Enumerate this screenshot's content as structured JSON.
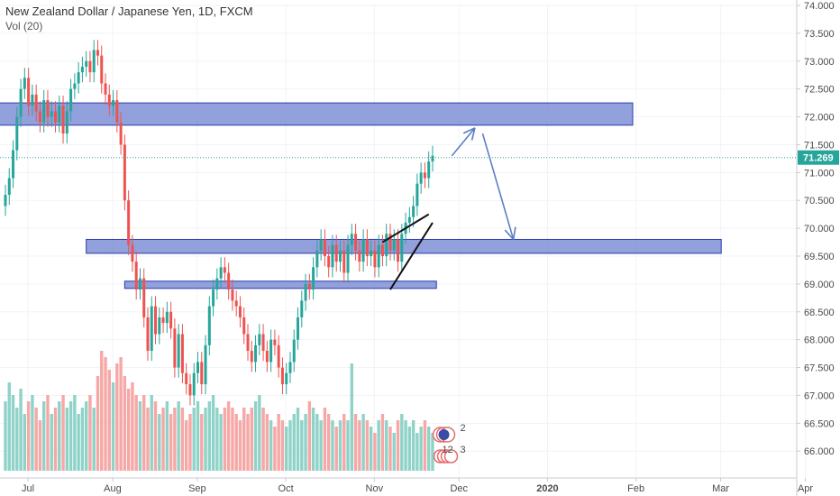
{
  "header": {
    "symbol_title": "New Zealand Dollar / Japanese Yen, 1D, FXCM",
    "volume_label": "Vol (20)"
  },
  "colors": {
    "up": "#26a69a",
    "down": "#ef5350",
    "vol_up": "#8fd3c8",
    "vol_down": "#f5a8a6",
    "zone_fill": "#7f8fd6",
    "zone_border": "#2b3cae",
    "arrow": "#5a7fc4",
    "last_price": "#26a69a"
  },
  "chart_data": {
    "type": "candlestick",
    "y_ticks": [
      "74.000",
      "73.500",
      "73.000",
      "72.500",
      "72.000",
      "71.500",
      "71.000",
      "70.500",
      "70.000",
      "69.500",
      "69.000",
      "68.500",
      "68.000",
      "67.500",
      "67.000",
      "66.500",
      "66.000"
    ],
    "ylim": [
      65.55,
      74.0
    ],
    "last_price": "71.269",
    "last_price_value": 71.269,
    "x_ticks": [
      "Jul",
      "Aug",
      "Sep",
      "Oct",
      "Nov",
      "Dec",
      "2020",
      "Feb",
      "Mar",
      "Apr"
    ],
    "x_tick_index": [
      0,
      22,
      44,
      67,
      90,
      112,
      135,
      158,
      180,
      202
    ],
    "close": [
      70.6,
      70.9,
      71.4,
      72.0,
      72.5,
      72.7,
      72.2,
      72.4,
      72.1,
      71.9,
      72.3,
      72.0,
      72.1,
      71.9,
      72.2,
      71.7,
      72.1,
      72.5,
      72.6,
      72.8,
      72.9,
      73.0,
      72.8,
      73.2,
      73.1,
      72.6,
      72.4,
      72.2,
      72.3,
      71.9,
      71.5,
      70.5,
      69.7,
      69.4,
      68.9,
      69.1,
      68.4,
      67.8,
      68.6,
      68.1,
      68.4,
      68.3,
      68.5,
      68.2,
      67.5,
      68.1,
      67.4,
      67.2,
      67.0,
      67.4,
      67.6,
      67.2,
      67.9,
      68.6,
      68.9,
      69.1,
      69.3,
      69.2,
      68.9,
      68.7,
      68.6,
      68.4,
      68.1,
      67.8,
      67.6,
      67.9,
      68.1,
      67.8,
      67.6,
      68.0,
      67.9,
      67.5,
      67.2,
      67.4,
      67.6,
      68.0,
      68.4,
      68.7,
      69.0,
      68.9,
      69.3,
      69.6,
      69.8,
      69.5,
      69.3,
      69.7,
      69.4,
      69.6,
      69.2,
      69.7,
      69.9,
      69.6,
      69.4,
      69.8,
      69.5,
      69.6,
      69.3,
      69.7,
      69.5,
      69.9,
      69.6,
      69.8,
      69.4,
      69.9,
      70.1,
      70.2,
      70.4,
      70.8,
      71.0,
      70.9,
      71.2,
      71.3
    ],
    "volume": [
      0.55,
      0.7,
      0.6,
      0.5,
      0.65,
      0.45,
      0.55,
      0.6,
      0.5,
      0.4,
      0.55,
      0.6,
      0.45,
      0.5,
      0.55,
      0.6,
      0.5,
      0.55,
      0.6,
      0.45,
      0.5,
      0.55,
      0.6,
      0.5,
      0.75,
      0.95,
      0.9,
      0.8,
      0.7,
      0.85,
      0.9,
      0.75,
      0.65,
      0.7,
      0.6,
      0.55,
      0.6,
      0.5,
      0.6,
      0.55,
      0.45,
      0.5,
      0.55,
      0.45,
      0.5,
      0.55,
      0.5,
      0.4,
      0.45,
      0.5,
      0.55,
      0.45,
      0.5,
      0.55,
      0.6,
      0.5,
      0.45,
      0.5,
      0.55,
      0.5,
      0.45,
      0.4,
      0.5,
      0.45,
      0.5,
      0.55,
      0.6,
      0.5,
      0.45,
      0.4,
      0.35,
      0.45,
      0.4,
      0.35,
      0.4,
      0.45,
      0.5,
      0.4,
      0.45,
      0.55,
      0.5,
      0.45,
      0.4,
      0.5,
      0.45,
      0.4,
      0.35,
      0.4,
      0.45,
      0.4,
      0.85,
      0.45,
      0.4,
      0.45,
      0.4,
      0.35,
      0.3,
      0.4,
      0.45,
      0.4,
      0.35,
      0.3,
      0.4,
      0.45,
      0.4,
      0.35,
      0.4,
      0.3,
      0.35,
      0.4,
      0.35,
      0.3
    ],
    "zones": [
      {
        "from": 71.85,
        "to": 72.25,
        "x_start": -2,
        "x_end": 163
      },
      {
        "from": 69.55,
        "to": 69.8,
        "x_start": 21,
        "x_end": 186
      },
      {
        "from": 68.92,
        "to": 69.05,
        "x_start": 31,
        "x_end": 112
      }
    ],
    "wedge_lines": [
      {
        "p1": [
          100,
          68.9
        ],
        "p2": [
          111,
          70.1
        ]
      },
      {
        "p1": [
          98,
          69.75
        ],
        "p2": [
          110,
          70.25
        ]
      }
    ],
    "arrows": [
      {
        "p1": [
          116,
          71.3
        ],
        "p2": [
          122,
          71.8
        ]
      },
      {
        "p1": [
          124,
          71.7
        ],
        "p2": [
          132,
          69.8
        ]
      }
    ],
    "event_badges": [
      "2",
      "12",
      "3"
    ]
  }
}
